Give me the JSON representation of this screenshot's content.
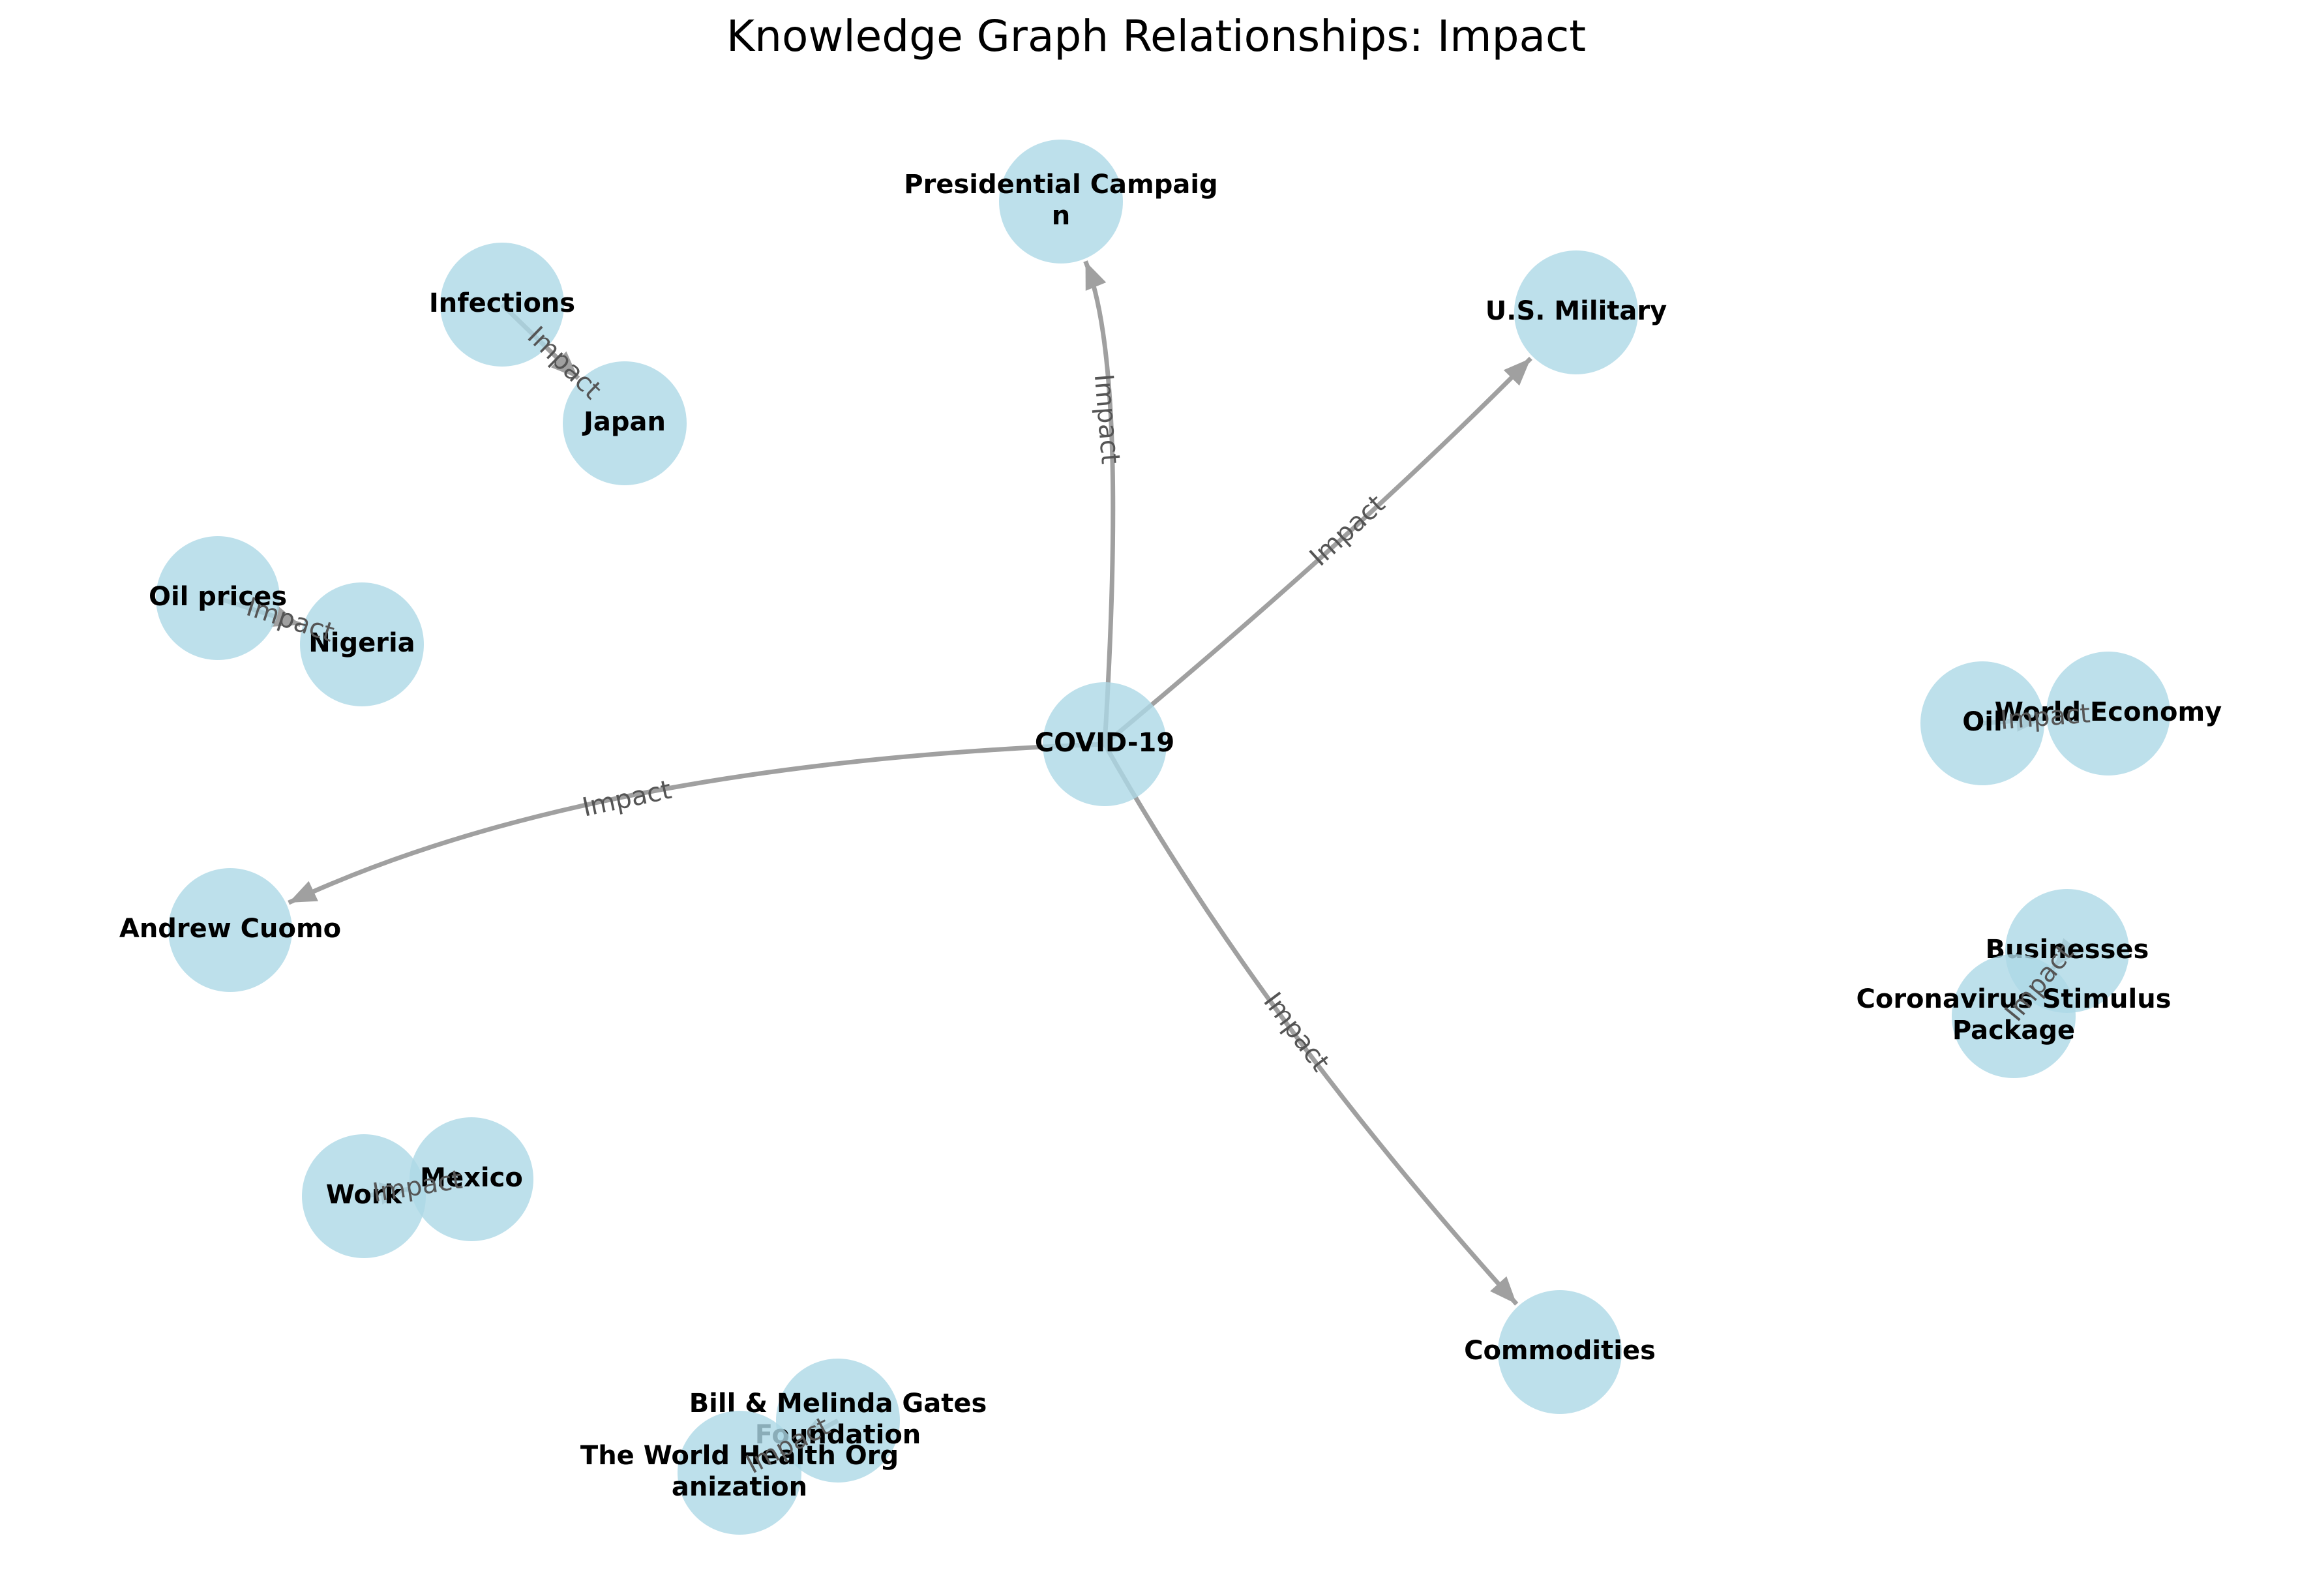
{
  "title": "Knowledge Graph Relationships: Impact",
  "colors": {
    "node_fill": "#add8e6",
    "edge": "#a0a0a0",
    "edge_label": "#555555",
    "text": "#000000"
  },
  "nodes": [
    {
      "id": "covid",
      "label": "COVID-19"
    },
    {
      "id": "campaign",
      "label": [
        "Presidential Campaig",
        "n"
      ]
    },
    {
      "id": "military",
      "label": "U.S. Military"
    },
    {
      "id": "cuomo",
      "label": "Andrew Cuomo"
    },
    {
      "id": "commodities",
      "label": "Commodities"
    },
    {
      "id": "infections",
      "label": "Infections"
    },
    {
      "id": "japan",
      "label": "Japan"
    },
    {
      "id": "oilprices",
      "label": "Oil prices"
    },
    {
      "id": "nigeria",
      "label": "Nigeria"
    },
    {
      "id": "oil",
      "label": "Oil"
    },
    {
      "id": "economy",
      "label": "World Economy"
    },
    {
      "id": "businesses",
      "label": "Businesses"
    },
    {
      "id": "stimulus",
      "label": [
        "Coronavirus Stimulus",
        "Package"
      ]
    },
    {
      "id": "work",
      "label": "Work"
    },
    {
      "id": "mexico",
      "label": "Mexico"
    },
    {
      "id": "gates",
      "label": [
        "Bill & Melinda Gates",
        "Foundation"
      ]
    },
    {
      "id": "who",
      "label": [
        "The World Health Org",
        "anization"
      ]
    }
  ],
  "edges": [
    {
      "source": "covid",
      "target": "campaign",
      "label": "Impact"
    },
    {
      "source": "covid",
      "target": "military",
      "label": "Impact"
    },
    {
      "source": "covid",
      "target": "cuomo",
      "label": "Impact"
    },
    {
      "source": "covid",
      "target": "commodities",
      "label": "Impact"
    },
    {
      "source": "infections",
      "target": "japan",
      "label": "Impact"
    },
    {
      "source": "oilprices",
      "target": "nigeria",
      "label": "Impact"
    },
    {
      "source": "oil",
      "target": "economy",
      "label": "Impact"
    },
    {
      "source": "businesses",
      "target": "stimulus",
      "label": "Impact"
    },
    {
      "source": "work",
      "target": "mexico",
      "label": "Impact"
    },
    {
      "source": "gates",
      "target": "who",
      "label": "Impact"
    }
  ]
}
